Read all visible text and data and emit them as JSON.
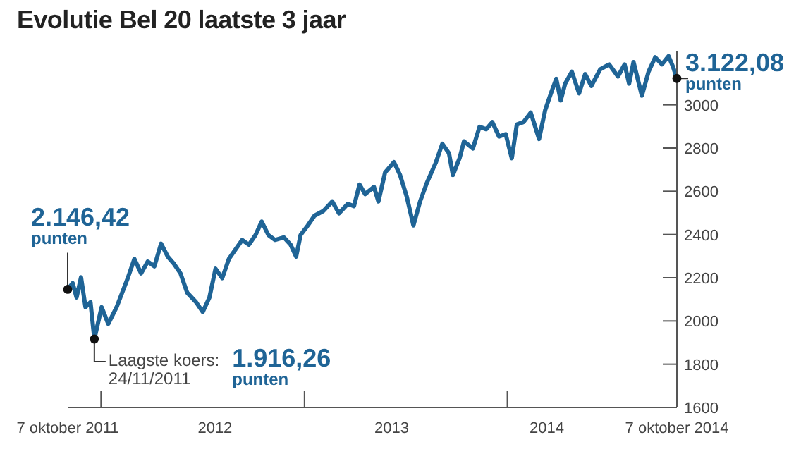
{
  "chart_data": {
    "type": "line",
    "title": "Evolutie Bel 20 laatste 3 jaar",
    "x": [
      "2011-10-07",
      "2011-10-16",
      "2011-10-23",
      "2011-10-31",
      "2011-11-08",
      "2011-11-17",
      "2011-11-24",
      "2011-12-07",
      "2011-12-19",
      "2012-01-03",
      "2012-01-23",
      "2012-02-04",
      "2012-02-16",
      "2012-02-28",
      "2012-03-11",
      "2012-03-23",
      "2012-04-04",
      "2012-04-15",
      "2012-04-27",
      "2012-05-09",
      "2012-05-25",
      "2012-06-06",
      "2012-06-18",
      "2012-06-29",
      "2012-07-11",
      "2012-07-23",
      "2012-08-04",
      "2012-08-16",
      "2012-08-28",
      "2012-09-09",
      "2012-09-20",
      "2012-10-02",
      "2012-10-14",
      "2012-10-30",
      "2012-11-11",
      "2012-11-21",
      "2012-11-29",
      "2012-12-12",
      "2012-12-24",
      "2013-01-09",
      "2013-01-25",
      "2013-02-06",
      "2013-02-22",
      "2013-03-05",
      "2013-03-15",
      "2013-03-25",
      "2013-04-10",
      "2013-04-18",
      "2013-04-30",
      "2013-05-16",
      "2013-05-27",
      "2013-06-08",
      "2013-06-20",
      "2013-07-02",
      "2013-07-14",
      "2013-07-30",
      "2013-08-11",
      "2013-08-23",
      "2013-08-30",
      "2013-09-11",
      "2013-09-19",
      "2013-10-05",
      "2013-10-17",
      "2013-10-29",
      "2013-11-09",
      "2013-11-21",
      "2013-12-03",
      "2013-12-14",
      "2013-12-23",
      "2014-01-04",
      "2014-01-17",
      "2014-02-01",
      "2014-02-12",
      "2014-02-24",
      "2014-03-04",
      "2014-03-12",
      "2014-03-20",
      "2014-04-01",
      "2014-04-14",
      "2014-04-25",
      "2014-05-06",
      "2014-05-22",
      "2014-06-07",
      "2014-06-23",
      "2014-07-05",
      "2014-07-13",
      "2014-07-21",
      "2014-08-05",
      "2014-08-17",
      "2014-08-29",
      "2014-09-10",
      "2014-09-22",
      "2014-09-30",
      "2014-10-07"
    ],
    "values": [
      2146.42,
      2175,
      2109,
      2202,
      2064,
      2087,
      1916.26,
      2064,
      1987,
      2064,
      2198,
      2287,
      2220,
      2275,
      2253,
      2358,
      2298,
      2265,
      2220,
      2131,
      2087,
      2042,
      2109,
      2242,
      2198,
      2287,
      2331,
      2375,
      2353,
      2398,
      2460,
      2398,
      2375,
      2387,
      2353,
      2298,
      2398,
      2442,
      2487,
      2509,
      2553,
      2498,
      2542,
      2531,
      2631,
      2587,
      2620,
      2553,
      2687,
      2735,
      2675,
      2575,
      2442,
      2553,
      2638,
      2731,
      2820,
      2776,
      2675,
      2753,
      2831,
      2798,
      2898,
      2887,
      2920,
      2853,
      2864,
      2753,
      2909,
      2920,
      2964,
      2842,
      2975,
      3065,
      3120,
      3020,
      3098,
      3153,
      3053,
      3142,
      3087,
      3164,
      3187,
      3131,
      3187,
      3098,
      3198,
      3042,
      3153,
      3220,
      3187,
      3225,
      3176,
      3122.08
    ],
    "color": "#1f6496",
    "xlim": [
      "2011-10-07",
      "2014-10-07"
    ],
    "xticks": [
      {
        "value": "2011-10-07",
        "label": "7 oktober 2011"
      },
      {
        "value": "2011-12-06",
        "label": null
      },
      {
        "value": "2012-06-28",
        "label": "2012"
      },
      {
        "value": "2012-12-06",
        "label": null
      },
      {
        "value": "2013-05-12",
        "label": "2013"
      },
      {
        "value": "2013-12-06",
        "label": null
      },
      {
        "value": "2014-02-15",
        "label": "2014"
      },
      {
        "value": "2014-10-07",
        "label": "7 oktober 2014"
      }
    ],
    "ylim": [
      1600,
      3250
    ],
    "yticks": [
      1600,
      1800,
      2000,
      2200,
      2400,
      2600,
      2800,
      3000
    ],
    "annotations": [
      {
        "text": "2.146,42\npunten",
        "x": "2011-10-07",
        "y": 2146.42
      },
      {
        "text": "Laagste koers:\n24/11/2011",
        "x": "2011-11-24",
        "y": 1916.26
      },
      "1.916,26\npunten",
      {
        "text": "3.122,08\npunten",
        "x": "2014-10-07",
        "y": 3122.08
      }
    ]
  }
}
